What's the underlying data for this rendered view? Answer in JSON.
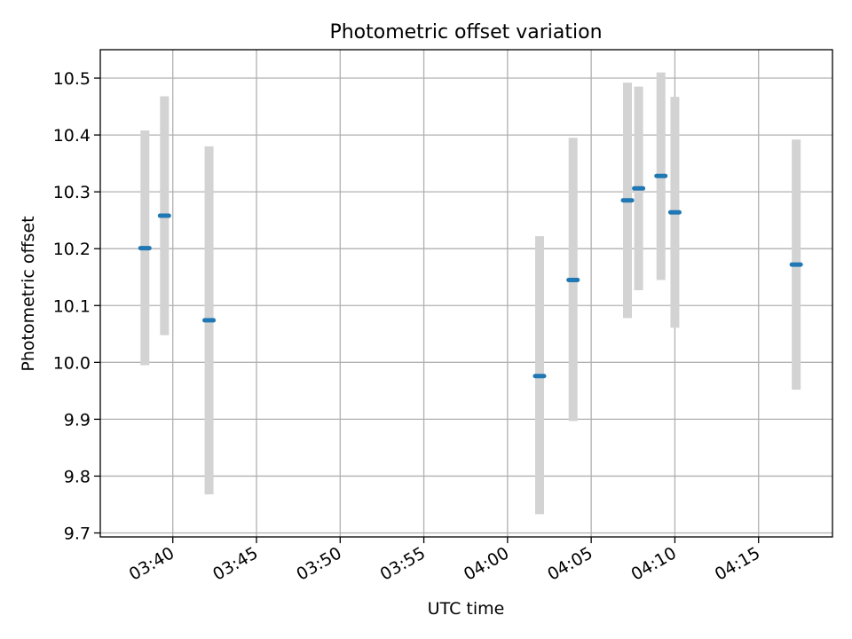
{
  "chart_data": {
    "type": "scatter",
    "title": "Photometric offset variation",
    "xlabel": "UTC time",
    "ylabel": "Photometric offset",
    "x_type": "time",
    "xlim": [
      "03:35:40",
      "04:19:25"
    ],
    "ylim": [
      9.693,
      10.55
    ],
    "xticks": [
      "03:40",
      "03:45",
      "03:50",
      "03:55",
      "04:00",
      "04:05",
      "04:10",
      "04:15"
    ],
    "yticks": [
      9.7,
      9.8,
      9.9,
      10.0,
      10.1,
      10.2,
      10.3,
      10.4,
      10.5
    ],
    "grid": true,
    "legend": false,
    "series": [
      {
        "marker_color": "#1f77b4",
        "errorbar_color": "#d3d3d3",
        "points": [
          {
            "x": "03:38:20",
            "y": 10.201,
            "low": 9.995,
            "high": 10.408
          },
          {
            "x": "03:39:30",
            "y": 10.258,
            "low": 10.048,
            "high": 10.468
          },
          {
            "x": "03:42:10",
            "y": 10.074,
            "low": 9.768,
            "high": 10.38
          },
          {
            "x": "04:01:55",
            "y": 9.976,
            "low": 9.733,
            "high": 10.222
          },
          {
            "x": "04:03:55",
            "y": 10.145,
            "low": 9.897,
            "high": 10.395
          },
          {
            "x": "04:07:10",
            "y": 10.285,
            "low": 10.078,
            "high": 10.492
          },
          {
            "x": "04:07:50",
            "y": 10.306,
            "low": 10.127,
            "high": 10.485
          },
          {
            "x": "04:09:10",
            "y": 10.328,
            "low": 10.145,
            "high": 10.51
          },
          {
            "x": "04:10:00",
            "y": 10.264,
            "low": 10.061,
            "high": 10.467
          },
          {
            "x": "04:17:15",
            "y": 10.172,
            "low": 9.952,
            "high": 10.392
          }
        ]
      }
    ]
  }
}
